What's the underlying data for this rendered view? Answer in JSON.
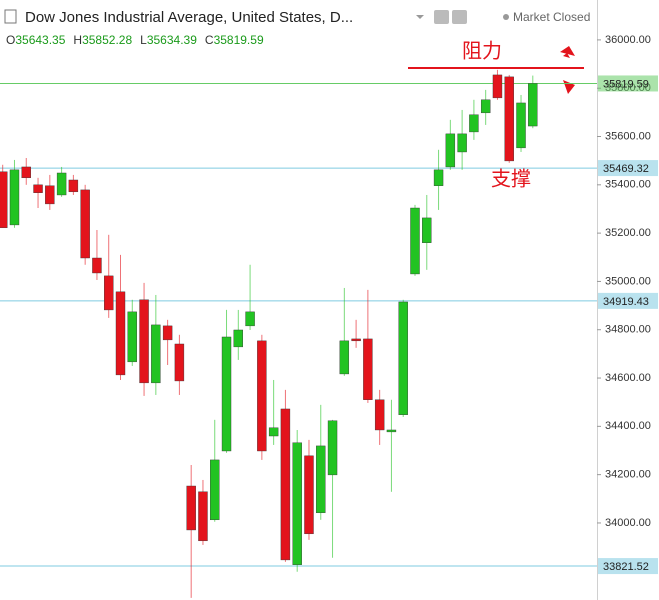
{
  "chart_data": {
    "type": "candlestick",
    "title": "Dow Jones Industrial Average, United States, D...",
    "status": "Market Closed",
    "ohlc_labels": [
      "O",
      "H",
      "L",
      "C"
    ],
    "resistance_label": "阻力",
    "support_label": "支撑",
    "up_color": "#22c322",
    "down_color": "#e3141c",
    "annotation_color": "#e3141c",
    "ylim": [
      33681,
      36041
    ],
    "yticks": [
      {
        "value": 34000,
        "label": "34000.00"
      },
      {
        "value": 34200,
        "label": "34200.00"
      },
      {
        "value": 34400,
        "label": "34400.00"
      },
      {
        "value": 34600,
        "label": "34600.00"
      },
      {
        "value": 34800,
        "label": "34800.00"
      },
      {
        "value": 35000,
        "label": "35000.00"
      },
      {
        "value": 35200,
        "label": "35200.00"
      },
      {
        "value": 35400,
        "label": "35400.00"
      },
      {
        "value": 35600,
        "label": "35600.00"
      },
      {
        "value": 35800,
        "label": "35800.00"
      },
      {
        "value": 36000,
        "label": "36000.00"
      }
    ],
    "price_lines": [
      {
        "value": 35819.59,
        "color": "#66cc66"
      },
      {
        "value": 35469.32,
        "color": "#7fcbe0"
      },
      {
        "value": 34919.43,
        "color": "#7fcbe0"
      },
      {
        "value": 33821.52,
        "color": "#7fcbe0"
      }
    ],
    "open": [
      35454,
      35234,
      35474,
      35400,
      35396,
      35358,
      35420,
      35379,
      35097,
      35023,
      34957,
      34667,
      34924,
      34580,
      34816,
      34741,
      34153,
      34129,
      34013,
      34298,
      34729,
      34816,
      34754,
      34360,
      34472,
      33827,
      34278,
      34042,
      34199,
      34617,
      34762,
      34762,
      34510,
      34377,
      34448,
      35031,
      35160,
      35396,
      35474,
      35536,
      35619,
      35698,
      35855,
      35847,
      35553,
      35643.35
    ],
    "high": [
      35483,
      35503,
      35511,
      35429,
      35441,
      35474,
      35441,
      35400,
      35213,
      35193,
      35110,
      34924,
      34994,
      34944,
      34841,
      34779,
      34240,
      34178,
      34427,
      34882,
      34882,
      35069,
      34779,
      34592,
      34551,
      34385,
      34344,
      34489,
      34427,
      34973,
      34841,
      34965,
      34551,
      34510,
      34924,
      35317,
      35358,
      35545,
      35669,
      35710,
      35752,
      35793,
      35876,
      35855,
      35772,
      35852.28
    ],
    "low": [
      35222,
      35222,
      35400,
      35304,
      35296,
      35350,
      35358,
      35069,
      35006,
      34849,
      34592,
      34650,
      34526,
      34530,
      34654,
      34530,
      33690,
      33909,
      34005,
      34290,
      34675,
      34799,
      34261,
      34323,
      33839,
      33798,
      33930,
      34013,
      33856,
      34609,
      34725,
      34497,
      34323,
      34129,
      34439,
      35023,
      35048,
      35296,
      35462,
      35462,
      35586,
      35648,
      35752,
      35491,
      35536,
      35634.39
    ],
    "close": [
      35222,
      35462,
      35429,
      35367,
      35321,
      35449,
      35371,
      35097,
      35035,
      34882,
      34613,
      34874,
      34580,
      34820,
      34758,
      34588,
      33971,
      33926,
      34261,
      34770,
      34799,
      34874,
      34298,
      34394,
      33847,
      34332,
      33955,
      34319,
      34423,
      34754,
      34754,
      34510,
      34385,
      34385,
      34915,
      35304,
      35263,
      35462,
      35611,
      35611,
      35690,
      35752,
      35760,
      35499,
      35739,
      35819.59
    ]
  }
}
